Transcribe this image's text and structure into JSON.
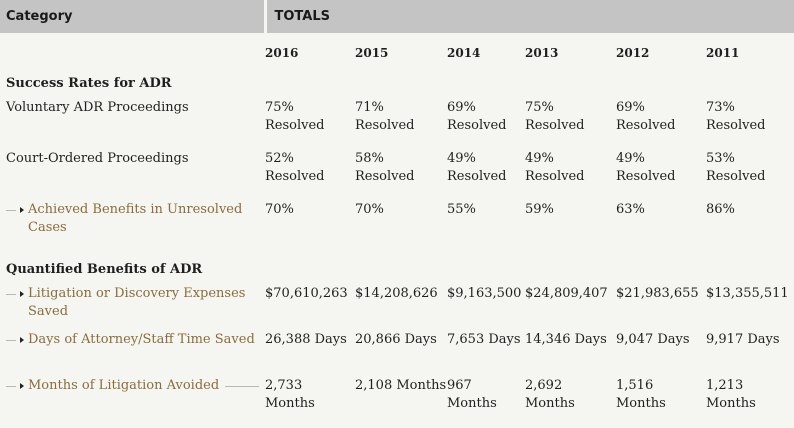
{
  "header": {
    "category": "Category",
    "totals": "TOTALS"
  },
  "years": [
    "2016",
    "2015",
    "2014",
    "2013",
    "2012",
    "2011"
  ],
  "sections": [
    {
      "title": "Success Rates for ADR",
      "rows": [
        {
          "label": "Voluntary ADR Proceedings",
          "values": [
            "75% Resolved",
            "71% Resolved",
            "69% Resolved",
            "75% Resolved",
            "69% Resolved",
            "73% Resolved"
          ]
        },
        {
          "label": "Court-Ordered Proceedings",
          "values": [
            "52% Resolved",
            "58% Resolved",
            "49% Resolved",
            "49% Resolved",
            "49% Resolved",
            "53% Resolved"
          ]
        },
        {
          "label": "Achieved Benefits in Unresolved Cases",
          "values": [
            "70%",
            "70%",
            "55%",
            "59%",
            "63%",
            "86%"
          ]
        }
      ]
    },
    {
      "title": "Quantified Benefits of ADR",
      "rows": [
        {
          "label": "Litigation or Discovery Expenses Saved",
          "values": [
            "$70,610,263",
            "$14,208,626",
            "$9,163,500",
            "$24,809,407",
            "$21,983,655",
            "$13,355,511"
          ]
        },
        {
          "label": "Days of Attorney/Staff Time Saved",
          "values": [
            "26,388 Days",
            "20,866 Days",
            "7,653 Days",
            "14,346 Days",
            "9,047 Days",
            "9,917 Days"
          ]
        },
        {
          "label": "Months of Litigation Avoided",
          "values": [
            "2,733 Months",
            "2,108 Months",
            "967 Months",
            "2,692 Months",
            "1,516 Months",
            "1,213 Months"
          ]
        }
      ]
    }
  ]
}
